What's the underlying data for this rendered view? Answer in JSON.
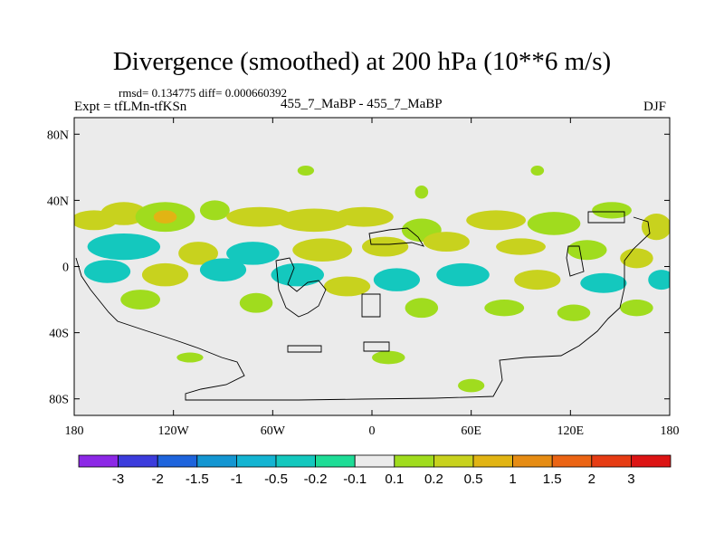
{
  "header": {
    "title": "Divergence (smoothed) at 200 hPa (10**6 m/s)",
    "rmsd_line": "rmsd= 0.134775 diff= 0.000660392",
    "expt_label": "Expt = tfLMn-tfKSn",
    "center_label": "455_7_MaBP - 455_7_MaBP",
    "season": "DJF"
  },
  "chart_data": {
    "type": "heatmap",
    "title": "Divergence (smoothed) at 200 hPa (10**6 m/s)",
    "xlabel": "",
    "ylabel": "",
    "xlim": [
      -180,
      180
    ],
    "ylim": [
      -90,
      90
    ],
    "x_ticks": [
      {
        "value": -180,
        "label": "180"
      },
      {
        "value": -120,
        "label": "120W"
      },
      {
        "value": -60,
        "label": "60W"
      },
      {
        "value": 0,
        "label": "0"
      },
      {
        "value": 60,
        "label": "60E"
      },
      {
        "value": 120,
        "label": "120E"
      },
      {
        "value": 180,
        "label": "180"
      }
    ],
    "y_ticks": [
      {
        "value": 80,
        "label": "80N"
      },
      {
        "value": 40,
        "label": "40N"
      },
      {
        "value": 0,
        "label": "0"
      },
      {
        "value": -40,
        "label": "40S"
      },
      {
        "value": -80,
        "label": "80S"
      }
    ],
    "colorbar": {
      "labels": [
        "-3",
        "-2",
        "-1.5",
        "-1",
        "-0.5",
        "-0.2",
        "-0.1",
        "0.1",
        "0.2",
        "0.5",
        "1",
        "1.5",
        "2",
        "3"
      ],
      "colors": [
        "#8c28e6",
        "#3c3cdc",
        "#1e64dc",
        "#1496d2",
        "#14b4d2",
        "#14c8be",
        "#1edc96",
        "#ebebeb",
        "#a0dc1e",
        "#c8d21e",
        "#e1b414",
        "#e68c14",
        "#eb6414",
        "#e63c14",
        "#dc1414"
      ]
    },
    "background_color": "#ebebeb",
    "features": [
      {
        "lon": -168,
        "lat": 28,
        "rlon": 14,
        "rlat": 6,
        "value": 0.3
      },
      {
        "lon": -150,
        "lat": 32,
        "rlon": 14,
        "rlat": 7,
        "value": 0.3
      },
      {
        "lon": -125,
        "lat": 30,
        "rlon": 18,
        "rlat": 9,
        "value": 0.2
      },
      {
        "lon": -125,
        "lat": 30,
        "rlon": 7,
        "rlat": 4,
        "value": 0.6
      },
      {
        "lon": -95,
        "lat": 34,
        "rlon": 9,
        "rlat": 6,
        "value": 0.2
      },
      {
        "lon": -68,
        "lat": 30,
        "rlon": 20,
        "rlat": 6,
        "value": 0.3
      },
      {
        "lon": -35,
        "lat": 28,
        "rlon": 22,
        "rlat": 7,
        "value": 0.3
      },
      {
        "lon": -5,
        "lat": 30,
        "rlon": 18,
        "rlat": 6,
        "value": 0.3
      },
      {
        "lon": 30,
        "lat": 22,
        "rlon": 12,
        "rlat": 7,
        "value": 0.2
      },
      {
        "lon": 75,
        "lat": 28,
        "rlon": 18,
        "rlat": 6,
        "value": 0.3
      },
      {
        "lon": 110,
        "lat": 26,
        "rlon": 16,
        "rlat": 7,
        "value": 0.2
      },
      {
        "lon": 145,
        "lat": 34,
        "rlon": 12,
        "rlat": 5,
        "value": 0.2
      },
      {
        "lon": 172,
        "lat": 24,
        "rlon": 9,
        "rlat": 8,
        "value": 0.3
      },
      {
        "lon": -150,
        "lat": 12,
        "rlon": 22,
        "rlat": 8,
        "value": -0.3
      },
      {
        "lon": -105,
        "lat": 8,
        "rlon": 12,
        "rlat": 7,
        "value": 0.3
      },
      {
        "lon": -72,
        "lat": 8,
        "rlon": 16,
        "rlat": 7,
        "value": -0.3
      },
      {
        "lon": -30,
        "lat": 10,
        "rlon": 18,
        "rlat": 7,
        "value": 0.3
      },
      {
        "lon": 8,
        "lat": 12,
        "rlon": 14,
        "rlat": 6,
        "value": 0.3
      },
      {
        "lon": 45,
        "lat": 15,
        "rlon": 14,
        "rlat": 6,
        "value": 0.3
      },
      {
        "lon": 90,
        "lat": 12,
        "rlon": 15,
        "rlat": 5,
        "value": 0.3
      },
      {
        "lon": 130,
        "lat": 10,
        "rlon": 12,
        "rlat": 6,
        "value": 0.2
      },
      {
        "lon": 160,
        "lat": 5,
        "rlon": 10,
        "rlat": 6,
        "value": 0.3
      },
      {
        "lon": -160,
        "lat": -3,
        "rlon": 14,
        "rlat": 7,
        "value": -0.3
      },
      {
        "lon": -125,
        "lat": -5,
        "rlon": 14,
        "rlat": 7,
        "value": 0.3
      },
      {
        "lon": -90,
        "lat": -2,
        "rlon": 14,
        "rlat": 7,
        "value": -0.3
      },
      {
        "lon": -45,
        "lat": -5,
        "rlon": 16,
        "rlat": 7,
        "value": -0.3
      },
      {
        "lon": -15,
        "lat": -12,
        "rlon": 14,
        "rlat": 6,
        "value": 0.3
      },
      {
        "lon": 15,
        "lat": -8,
        "rlon": 14,
        "rlat": 7,
        "value": -0.3
      },
      {
        "lon": 55,
        "lat": -5,
        "rlon": 16,
        "rlat": 7,
        "value": -0.3
      },
      {
        "lon": 100,
        "lat": -8,
        "rlon": 14,
        "rlat": 6,
        "value": 0.3
      },
      {
        "lon": 140,
        "lat": -10,
        "rlon": 14,
        "rlat": 6,
        "value": -0.3
      },
      {
        "lon": 175,
        "lat": -8,
        "rlon": 8,
        "rlat": 6,
        "value": -0.3
      },
      {
        "lon": -140,
        "lat": -20,
        "rlon": 12,
        "rlat": 6,
        "value": 0.2
      },
      {
        "lon": -70,
        "lat": -22,
        "rlon": 10,
        "rlat": 6,
        "value": 0.2
      },
      {
        "lon": 30,
        "lat": -25,
        "rlon": 10,
        "rlat": 6,
        "value": 0.2
      },
      {
        "lon": 80,
        "lat": -25,
        "rlon": 12,
        "rlat": 5,
        "value": 0.2
      },
      {
        "lon": 122,
        "lat": -28,
        "rlon": 10,
        "rlat": 5,
        "value": 0.2
      },
      {
        "lon": 160,
        "lat": -25,
        "rlon": 10,
        "rlat": 5,
        "value": 0.2
      },
      {
        "lon": -40,
        "lat": 58,
        "rlon": 5,
        "rlat": 3,
        "value": 0.2
      },
      {
        "lon": 30,
        "lat": 45,
        "rlon": 4,
        "rlat": 4,
        "value": 0.2
      },
      {
        "lon": 100,
        "lat": 58,
        "rlon": 4,
        "rlat": 3,
        "value": 0.2
      },
      {
        "lon": -110,
        "lat": -55,
        "rlon": 8,
        "rlat": 3,
        "value": 0.2
      },
      {
        "lon": 10,
        "lat": -55,
        "rlon": 10,
        "rlat": 4,
        "value": 0.2
      },
      {
        "lon": 60,
        "lat": -72,
        "rlon": 8,
        "rlat": 4,
        "value": 0.2
      }
    ]
  }
}
